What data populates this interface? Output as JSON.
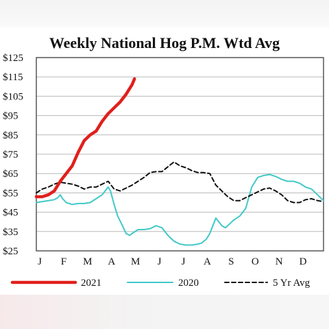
{
  "chart_data": {
    "type": "line",
    "title": "Weekly National Hog P.M. Wtd Avg",
    "xlabel": "",
    "ylabel": "",
    "xlim": [
      0,
      12
    ],
    "ylim": [
      25,
      125
    ],
    "y_ticks": [
      "$125",
      "$115",
      "$105",
      "$95",
      "$85",
      "$75",
      "$65",
      "$55",
      "$45",
      "$35",
      "$25"
    ],
    "y_tick_values": [
      125,
      115,
      105,
      95,
      85,
      75,
      65,
      55,
      45,
      35,
      25
    ],
    "x_ticks": [
      "J",
      "F",
      "M",
      "A",
      "M",
      "J",
      "J",
      "A",
      "S",
      "O",
      "N",
      "D"
    ],
    "x_tick_values": [
      0,
      1,
      2,
      3,
      4,
      5,
      6,
      7,
      8,
      9,
      10,
      11
    ],
    "grid": "horizontal",
    "legend_position": "bottom",
    "colors": {
      "s2021": "#e0201c",
      "s2020": "#40c8c8",
      "s5yr": "#111111",
      "grid": "#b8b8b8",
      "frame": "#555555"
    },
    "series": [
      {
        "name": "2021",
        "style": "solid-thick",
        "x": [
          0,
          0.25,
          0.5,
          0.75,
          1.0,
          1.25,
          1.5,
          1.75,
          2.0,
          2.25,
          2.5,
          2.75,
          3.0,
          3.25,
          3.5,
          3.75,
          4.0,
          4.1
        ],
        "y": [
          53,
          53,
          54,
          56,
          61,
          65,
          69,
          76,
          82,
          85,
          87,
          92,
          96,
          99,
          102,
          106,
          111,
          114
        ]
      },
      {
        "name": "2020",
        "style": "solid-thin",
        "x": [
          0,
          0.25,
          0.5,
          0.75,
          0.9,
          1.0,
          1.1,
          1.25,
          1.5,
          1.75,
          2.0,
          2.25,
          2.5,
          2.75,
          3.0,
          3.1,
          3.25,
          3.4,
          3.6,
          3.75,
          3.9,
          4.0,
          4.25,
          4.5,
          4.75,
          5.0,
          5.25,
          5.5,
          5.75,
          6.0,
          6.25,
          6.5,
          6.75,
          6.9,
          7.0,
          7.1,
          7.25,
          7.5,
          7.75,
          7.9,
          8.0,
          8.25,
          8.5,
          8.75,
          9.0,
          9.25,
          9.5,
          9.75,
          10.0,
          10.25,
          10.5,
          10.75,
          11.0,
          11.25,
          11.5,
          11.75,
          12.0
        ],
        "y": [
          50,
          50.5,
          51,
          51.5,
          52.5,
          54,
          52,
          50,
          49,
          49.5,
          49.5,
          50,
          52,
          54,
          58,
          56,
          49,
          43,
          38,
          34,
          33,
          34,
          36,
          36,
          36.5,
          38,
          37,
          33,
          30,
          28.5,
          28,
          28,
          28.5,
          29,
          30,
          31,
          34,
          42,
          38,
          37,
          38,
          41,
          43,
          47,
          58,
          63,
          64,
          64.5,
          63.5,
          62,
          61,
          61,
          60,
          58,
          57,
          54,
          51
        ]
      },
      {
        "name": "5 Yr Avg",
        "style": "dashed",
        "x": [
          0,
          0.25,
          0.5,
          0.75,
          1.0,
          1.25,
          1.5,
          1.75,
          2.0,
          2.25,
          2.5,
          2.75,
          3.0,
          3.25,
          3.5,
          3.75,
          4.0,
          4.25,
          4.5,
          4.75,
          5.0,
          5.25,
          5.5,
          5.75,
          6.0,
          6.25,
          6.5,
          6.75,
          7.0,
          7.25,
          7.5,
          7.75,
          8.0,
          8.25,
          8.5,
          8.75,
          9.0,
          9.25,
          9.5,
          9.75,
          10.0,
          10.25,
          10.5,
          10.75,
          11.0,
          11.25,
          11.5,
          11.75,
          12.0
        ],
        "y": [
          55,
          57,
          58,
          59.5,
          60.5,
          60,
          59.5,
          58.5,
          57,
          58,
          58,
          59.5,
          61,
          57,
          56,
          57.5,
          59,
          61,
          63,
          65.5,
          66,
          66,
          68.5,
          71,
          69,
          68,
          66.5,
          65.5,
          65.5,
          65,
          59,
          56,
          53,
          51,
          51,
          52.5,
          54,
          55.5,
          57,
          57.5,
          56,
          54,
          51,
          50,
          50,
          51.5,
          52,
          51,
          50.5
        ]
      }
    ]
  }
}
